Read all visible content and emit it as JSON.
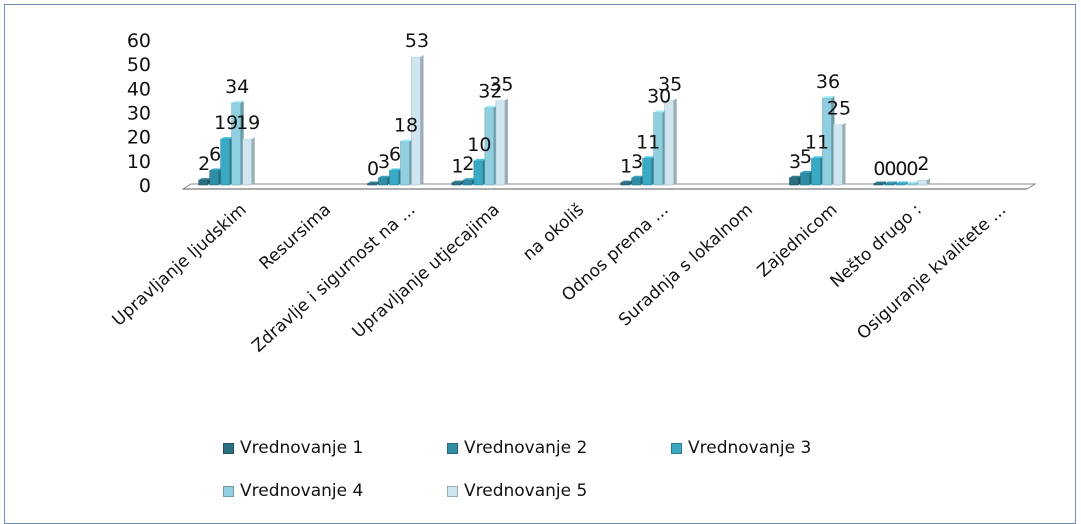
{
  "chart_data": {
    "type": "bar",
    "style": "3d-clustered-column",
    "categories": [
      "Upravljanje ljudskim",
      "Resursima",
      "Zdravlje i sigurnost na ...",
      "Upravljanje utjecajima",
      "na okoliš",
      "Odnos prema ...",
      "Suradnja s lokalnom",
      "Zajednicom",
      "Nešto drugo :",
      "Osiguranje kvalitete ..."
    ],
    "series": [
      {
        "name": "Vrednovanje 1",
        "color": "#2b6e80",
        "values": [
          2,
          null,
          0,
          1,
          null,
          1,
          null,
          3,
          0,
          null
        ]
      },
      {
        "name": "Vrednovanje 2",
        "color": "#2f8ea6",
        "values": [
          6,
          null,
          3,
          2,
          null,
          3,
          null,
          5,
          0,
          null
        ]
      },
      {
        "name": "Vrednovanje 3",
        "color": "#3aa9c4",
        "values": [
          19,
          null,
          6,
          10,
          null,
          11,
          null,
          11,
          0,
          null
        ]
      },
      {
        "name": "Vrednovanje 4",
        "color": "#8fcfdf",
        "values": [
          34,
          null,
          18,
          32,
          null,
          30,
          null,
          36,
          0,
          null
        ]
      },
      {
        "name": "Vrednovanje 5",
        "color": "#cfe6f0",
        "values": [
          19,
          null,
          53,
          35,
          null,
          35,
          null,
          25,
          2,
          null
        ]
      }
    ],
    "ylim": [
      0,
      60
    ],
    "yticks": [
      0,
      10,
      20,
      30,
      40,
      50,
      60
    ],
    "legend_position": "bottom",
    "grid": false
  }
}
